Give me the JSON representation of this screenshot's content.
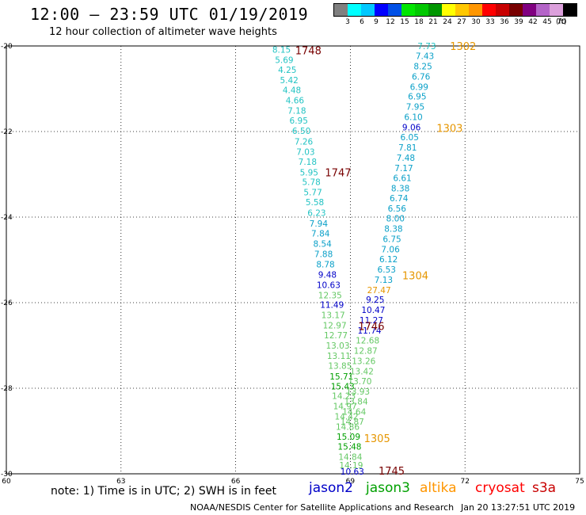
{
  "header": {
    "title": "12:00 – 23:59 UTC 01/19/2019",
    "subtitle": "12 hour collection of altimeter wave heights"
  },
  "legend": {
    "colors": [
      "#808080",
      "#00ffff",
      "#00c8ff",
      "#0000ff",
      "#0050e6",
      "#00e600",
      "#00c800",
      "#009600",
      "#ffff00",
      "#ffc800",
      "#ff9600",
      "#ff0000",
      "#c80000",
      "#780000",
      "#800080",
      "#b464c8",
      "#dca0dc",
      "#000000"
    ],
    "labels": [
      "3",
      "6",
      "9",
      "12",
      "15",
      "18",
      "21",
      "24",
      "27",
      "30",
      "33",
      "36",
      "39",
      "42",
      "45",
      "70"
    ],
    "unit": "(ft)"
  },
  "map": {
    "lon_range": [
      60,
      75
    ],
    "lat_range": [
      -20,
      -30
    ],
    "x_ticks": [
      "60",
      "63",
      "66",
      "69",
      "72",
      "75"
    ],
    "y_ticks": [
      "-20",
      "-22",
      "-24",
      "-26",
      "-28",
      "-30"
    ],
    "grid": true
  },
  "tracks": [
    {
      "satellite": "jason2",
      "points": [
        {
          "lon": 67.2,
          "lat": -20.08,
          "value": "8.15",
          "color": "#22c3c3"
        },
        {
          "lon": 67.27,
          "lat": -20.32,
          "value": "5.69",
          "color": "#22c3c3"
        },
        {
          "lon": 67.35,
          "lat": -20.56,
          "value": "4.25",
          "color": "#22c3c3"
        },
        {
          "lon": 67.4,
          "lat": -20.8,
          "value": "5.42",
          "color": "#22c3c3"
        },
        {
          "lon": 67.47,
          "lat": -21.03,
          "value": "4.48",
          "color": "#22c3c3"
        },
        {
          "lon": 67.55,
          "lat": -21.27,
          "value": "4.66",
          "color": "#22c3c3"
        },
        {
          "lon": 67.6,
          "lat": -21.51,
          "value": "7.18",
          "color": "#22c3c3"
        },
        {
          "lon": 67.65,
          "lat": -21.74,
          "value": "6.95",
          "color": "#22c3c3"
        },
        {
          "lon": 67.72,
          "lat": -21.98,
          "value": "6.50",
          "color": "#22c3c3"
        },
        {
          "lon": 67.78,
          "lat": -22.23,
          "value": "7.26",
          "color": "#22c3c3"
        },
        {
          "lon": 67.83,
          "lat": -22.47,
          "value": "7.03",
          "color": "#22c3c3"
        },
        {
          "lon": 67.88,
          "lat": -22.7,
          "value": "7.18",
          "color": "#22c3c3"
        },
        {
          "lon": 67.92,
          "lat": -22.95,
          "value": "5.95",
          "color": "#22c3c3"
        },
        {
          "lon": 67.98,
          "lat": -23.18,
          "value": "5.78",
          "color": "#22c3c3"
        },
        {
          "lon": 68.02,
          "lat": -23.42,
          "value": "5.77",
          "color": "#22c3c3"
        },
        {
          "lon": 68.07,
          "lat": -23.65,
          "value": "5.58",
          "color": "#22c3c3"
        },
        {
          "lon": 68.12,
          "lat": -23.9,
          "value": "6.23",
          "color": "#22c3c3"
        },
        {
          "lon": 68.17,
          "lat": -24.15,
          "value": "7.94",
          "color": "#0aa0c8"
        },
        {
          "lon": 68.22,
          "lat": -24.38,
          "value": "7.84",
          "color": "#0aa0c8"
        },
        {
          "lon": 68.27,
          "lat": -24.62,
          "value": "8.54",
          "color": "#0aa0c8"
        },
        {
          "lon": 68.3,
          "lat": -24.86,
          "value": "7.88",
          "color": "#0aa0c8"
        },
        {
          "lon": 68.35,
          "lat": -25.1,
          "value": "8.78",
          "color": "#0aa0c8"
        },
        {
          "lon": 68.4,
          "lat": -25.34,
          "value": "9.48",
          "color": "#0000c8"
        },
        {
          "lon": 68.43,
          "lat": -25.58,
          "value": "10.63",
          "color": "#0000c8"
        },
        {
          "lon": 68.47,
          "lat": -25.82,
          "value": "12.35",
          "color": "#64c864"
        },
        {
          "lon": 68.52,
          "lat": -26.05,
          "value": "11.49",
          "color": "#0000c8"
        },
        {
          "lon": 68.55,
          "lat": -26.29,
          "value": "13.17",
          "color": "#64c864"
        },
        {
          "lon": 68.59,
          "lat": -26.53,
          "value": "12.97",
          "color": "#64c864"
        },
        {
          "lon": 68.62,
          "lat": -26.76,
          "value": "12.77",
          "color": "#64c864"
        },
        {
          "lon": 68.67,
          "lat": -27.0,
          "value": "13.03",
          "color": "#64c864"
        },
        {
          "lon": 68.7,
          "lat": -27.24,
          "value": "13.11",
          "color": "#64c864"
        },
        {
          "lon": 68.73,
          "lat": -27.47,
          "value": "13.85",
          "color": "#64c864"
        },
        {
          "lon": 68.77,
          "lat": -27.72,
          "value": "15.71",
          "color": "#00a000"
        },
        {
          "lon": 68.8,
          "lat": -27.95,
          "value": "15.43",
          "color": "#00a000"
        },
        {
          "lon": 68.83,
          "lat": -28.18,
          "value": "14.23",
          "color": "#64c864"
        },
        {
          "lon": 68.86,
          "lat": -28.42,
          "value": "14.97",
          "color": "#64c864"
        },
        {
          "lon": 68.9,
          "lat": -28.66,
          "value": "14.42",
          "color": "#64c864"
        },
        {
          "lon": 68.93,
          "lat": -28.9,
          "value": "14.86",
          "color": "#64c864"
        },
        {
          "lon": 68.95,
          "lat": -29.13,
          "value": "15.09",
          "color": "#00a000"
        },
        {
          "lon": 68.98,
          "lat": -29.36,
          "value": "15.48",
          "color": "#00a000"
        },
        {
          "lon": 69.0,
          "lat": -29.6,
          "value": "14.84",
          "color": "#64c864"
        },
        {
          "lon": 69.02,
          "lat": -29.8,
          "value": "14.19",
          "color": "#64c864"
        },
        {
          "lon": 69.05,
          "lat": -29.94,
          "value": "10.63",
          "color": "#0000c8"
        }
      ]
    },
    {
      "satellite": "jason3",
      "points": [
        {
          "lon": 71.0,
          "lat": -20.0,
          "value": "7.73",
          "color": "#22c3c3"
        },
        {
          "lon": 70.95,
          "lat": -20.23,
          "value": "7.43",
          "color": "#0aa0c8"
        },
        {
          "lon": 70.9,
          "lat": -20.47,
          "value": "8.25",
          "color": "#0aa0c8"
        },
        {
          "lon": 70.85,
          "lat": -20.71,
          "value": "6.76",
          "color": "#0aa0c8"
        },
        {
          "lon": 70.8,
          "lat": -20.95,
          "value": "6.99",
          "color": "#0aa0c8"
        },
        {
          "lon": 70.75,
          "lat": -21.18,
          "value": "6.95",
          "color": "#0aa0c8"
        },
        {
          "lon": 70.7,
          "lat": -21.42,
          "value": "7.95",
          "color": "#0aa0c8"
        },
        {
          "lon": 70.65,
          "lat": -21.66,
          "value": "6.10",
          "color": "#0aa0c8"
        },
        {
          "lon": 70.6,
          "lat": -21.9,
          "value": "9.06",
          "color": "#0000c8"
        },
        {
          "lon": 70.55,
          "lat": -22.13,
          "value": "6.05",
          "color": "#0aa0c8"
        },
        {
          "lon": 70.5,
          "lat": -22.37,
          "value": "7.81",
          "color": "#0aa0c8"
        },
        {
          "lon": 70.45,
          "lat": -22.61,
          "value": "7.48",
          "color": "#0aa0c8"
        },
        {
          "lon": 70.4,
          "lat": -22.85,
          "value": "7.17",
          "color": "#0aa0c8"
        },
        {
          "lon": 70.36,
          "lat": -23.08,
          "value": "6.61",
          "color": "#0aa0c8"
        },
        {
          "lon": 70.31,
          "lat": -23.32,
          "value": "8.38",
          "color": "#0aa0c8"
        },
        {
          "lon": 70.27,
          "lat": -23.56,
          "value": "6.74",
          "color": "#0aa0c8"
        },
        {
          "lon": 70.22,
          "lat": -23.8,
          "value": "6.56",
          "color": "#0aa0c8"
        },
        {
          "lon": 70.18,
          "lat": -24.03,
          "value": "8.00",
          "color": "#0aa0c8"
        },
        {
          "lon": 70.13,
          "lat": -24.27,
          "value": "8.38",
          "color": "#0aa0c8"
        },
        {
          "lon": 70.09,
          "lat": -24.51,
          "value": "6.75",
          "color": "#0aa0c8"
        },
        {
          "lon": 70.05,
          "lat": -24.75,
          "value": "7.06",
          "color": "#0aa0c8"
        },
        {
          "lon": 70.0,
          "lat": -24.98,
          "value": "6.12",
          "color": "#0aa0c8"
        },
        {
          "lon": 69.95,
          "lat": -25.22,
          "value": "6.53",
          "color": "#0aa0c8"
        },
        {
          "lon": 69.87,
          "lat": -25.46,
          "value": "7.13",
          "color": "#0aa0c8"
        },
        {
          "lon": 69.75,
          "lat": -25.7,
          "value": "27.47",
          "color": "#e69600"
        },
        {
          "lon": 69.65,
          "lat": -25.93,
          "value": "9.25",
          "color": "#0000c8"
        },
        {
          "lon": 69.6,
          "lat": -26.17,
          "value": "10.47",
          "color": "#0000c8"
        },
        {
          "lon": 69.55,
          "lat": -26.41,
          "value": "11.27",
          "color": "#0000c8"
        },
        {
          "lon": 69.5,
          "lat": -26.65,
          "value": "11.74",
          "color": "#0000c8"
        },
        {
          "lon": 69.45,
          "lat": -26.88,
          "value": "12.68",
          "color": "#64c864"
        },
        {
          "lon": 69.4,
          "lat": -27.12,
          "value": "12.87",
          "color": "#64c864"
        },
        {
          "lon": 69.35,
          "lat": -27.36,
          "value": "13.26",
          "color": "#64c864"
        },
        {
          "lon": 69.3,
          "lat": -27.6,
          "value": "13.42",
          "color": "#64c864"
        },
        {
          "lon": 69.25,
          "lat": -27.83,
          "value": "13.70",
          "color": "#64c864"
        },
        {
          "lon": 69.2,
          "lat": -28.07,
          "value": "13.93",
          "color": "#64c864"
        },
        {
          "lon": 69.15,
          "lat": -28.31,
          "value": "13.84",
          "color": "#64c864"
        },
        {
          "lon": 69.1,
          "lat": -28.55,
          "value": "14.64",
          "color": "#64c864"
        },
        {
          "lon": 69.05,
          "lat": -28.78,
          "value": "14.87",
          "color": "#64c864"
        }
      ]
    }
  ],
  "pass_labels": [
    {
      "text": "1748",
      "lon": 67.9,
      "lat": -20.1,
      "color": "#780000"
    },
    {
      "text": "1747",
      "lon": 68.68,
      "lat": -22.95,
      "color": "#780000"
    },
    {
      "text": "1746",
      "lon": 69.55,
      "lat": -26.55,
      "color": "#780000"
    },
    {
      "text": "1745",
      "lon": 70.08,
      "lat": -29.93,
      "color": "#780000"
    },
    {
      "text": "1302",
      "lon": 71.95,
      "lat": -20.0,
      "color": "#e69600"
    },
    {
      "text": "1303",
      "lon": 71.6,
      "lat": -21.92,
      "color": "#e69600"
    },
    {
      "text": "1304",
      "lon": 70.7,
      "lat": -25.36,
      "color": "#e69600"
    },
    {
      "text": "1305",
      "lon": 69.7,
      "lat": -29.17,
      "color": "#e69600"
    }
  ],
  "footer": {
    "note": "note: 1) Time is in UTC; 2) SWH is in feet",
    "satellites": [
      {
        "name": "jason2",
        "color": "#0000c8"
      },
      {
        "name": "jason3",
        "color": "#00a000"
      },
      {
        "name": "altika",
        "color": "#ff9600"
      },
      {
        "name": "cryosat",
        "color": "#ff0000"
      },
      {
        "name": "s3a",
        "color": "#c80000"
      }
    ],
    "credit": "NOAA/NESDIS Center for Satellite Applications and Research",
    "timestamp": "Jan 20 13:27:51 UTC 2019"
  }
}
